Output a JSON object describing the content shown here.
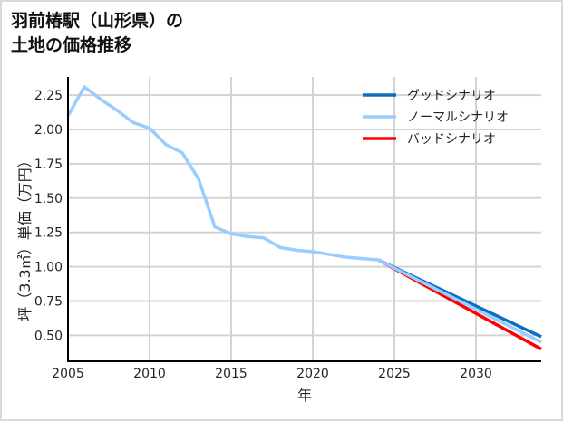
{
  "chart_data": {
    "type": "line",
    "title": "羽前椿駅（山形県）の\n土地の価格推移",
    "title_lines": [
      "羽前椿駅（山形県）の",
      "土地の価格推移"
    ],
    "xlabel": "年",
    "ylabel": "坪（3.3㎡）単価（万円）",
    "xlim": [
      2005,
      2034
    ],
    "ylim": [
      0.31,
      2.38
    ],
    "xticks": [
      2005,
      2010,
      2015,
      2020,
      2025,
      2030
    ],
    "yticks": [
      0.5,
      0.75,
      1.0,
      1.25,
      1.5,
      1.75,
      2.0,
      2.25
    ],
    "ytick_labels": [
      "0.50",
      "0.75",
      "1.00",
      "1.25",
      "1.50",
      "1.75",
      "2.00",
      "2.25"
    ],
    "grid": true,
    "legend_position": "upper right",
    "series": [
      {
        "name": "グッドシナリオ",
        "color": "#0a6fc2",
        "x": [
          2024,
          2034
        ],
        "values": [
          1.05,
          0.49
        ]
      },
      {
        "name": "ノーマルシナリオ",
        "color": "#99ccff",
        "x": [
          2005,
          2006,
          2007,
          2008,
          2009,
          2010,
          2011,
          2012,
          2013,
          2014,
          2015,
          2016,
          2017,
          2018,
          2019,
          2020,
          2021,
          2022,
          2023,
          2024,
          2034
        ],
        "values": [
          2.1,
          2.31,
          2.22,
          2.14,
          2.05,
          2.01,
          1.89,
          1.83,
          1.64,
          1.29,
          1.24,
          1.22,
          1.21,
          1.14,
          1.12,
          1.11,
          1.09,
          1.07,
          1.06,
          1.05,
          0.45
        ]
      },
      {
        "name": "バッドシナリオ",
        "color": "#ff0000",
        "x": [
          2024,
          2034
        ],
        "values": [
          1.05,
          0.4
        ]
      }
    ]
  }
}
